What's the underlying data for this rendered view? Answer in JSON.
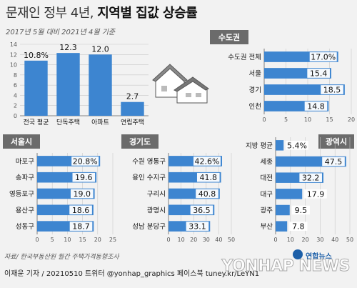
{
  "header": {
    "title_prefix": "문재인 정부 4년,",
    "title_main": "지역별 집값 상승률",
    "subtitle": "2017년 5월 대비 2021년 4월 기준"
  },
  "footer": {
    "source": "자료/ 한국부동산원 월간 주택가격동향조사",
    "credits": "이재윤 기자 / 20210510  트위터 @yonhap_graphics  페이스북 tuney.kr/LeYN1",
    "logo": "연합뉴스",
    "watermark": "YONHAP NEWS"
  },
  "colors": {
    "bar": "#3d85d0",
    "bar_dark": "#2a6cb8",
    "panel_title_bg": "#6b6b6b",
    "grid": "#999999",
    "label_box": "#ffffff"
  },
  "chart_data": [
    {
      "id": "national",
      "type": "bar",
      "categories": [
        "전국 평균",
        "단독주택",
        "아파트",
        "연립주택"
      ],
      "values": [
        10.8,
        12.3,
        12.0,
        2.7
      ],
      "value_labels": [
        "10.8%",
        "12.3",
        "12.0",
        "2.7"
      ],
      "ylim": [
        0,
        14
      ],
      "yticks": [
        "0",
        "2",
        "4",
        "6",
        "8",
        "10",
        "12",
        "14"
      ]
    },
    {
      "id": "capital",
      "type": "bar",
      "title": "수도권",
      "orientation": "horizontal",
      "categories": [
        "수도권 전체",
        "서울",
        "경기",
        "인천"
      ],
      "values": [
        17.0,
        15.4,
        18.5,
        14.8
      ],
      "value_labels": [
        "17.0%",
        "15.4",
        "18.5",
        "14.8"
      ],
      "xlim": [
        0,
        20
      ],
      "xticks": [
        "0",
        "5",
        "10",
        "15",
        "20"
      ]
    },
    {
      "id": "seoul",
      "type": "bar",
      "title": "서울시",
      "orientation": "horizontal",
      "categories": [
        "마포구",
        "송파구",
        "영등포구",
        "용산구",
        "성동구"
      ],
      "values": [
        20.8,
        19.6,
        19.0,
        18.6,
        18.7
      ],
      "value_labels": [
        "20.8%",
        "19.6",
        "19.0",
        "18.6",
        "18.7"
      ],
      "xlim": [
        0,
        25
      ],
      "xticks": [
        "0",
        "5",
        "10",
        "15",
        "20",
        "25"
      ]
    },
    {
      "id": "gyeonggi",
      "type": "bar",
      "title": "경기도",
      "orientation": "horizontal",
      "categories": [
        "수원 영통구",
        "용인 수지구",
        "구리시",
        "광명시",
        "성남 분당구"
      ],
      "values": [
        42.6,
        41.8,
        40.8,
        36.5,
        33.1
      ],
      "value_labels": [
        "42.6%",
        "41.8",
        "40.8",
        "36.5",
        "33.1"
      ],
      "xlim": [
        0,
        50
      ],
      "xticks": [
        "0",
        "10",
        "20",
        "30",
        "40",
        "50"
      ]
    },
    {
      "id": "metro",
      "type": "bar",
      "title": "광역시",
      "orientation": "horizontal",
      "categories": [
        "지방 평균",
        "세종",
        "대전",
        "대구",
        "광주",
        "부산"
      ],
      "values": [
        5.4,
        47.5,
        32.2,
        17.9,
        9.5,
        7.8
      ],
      "value_labels": [
        "5.4%",
        "47.5",
        "32.2",
        "17.9",
        "9.5",
        "7.8"
      ],
      "xlim": [
        0,
        50
      ],
      "xticks": [
        "0",
        "10",
        "20",
        "30",
        "40",
        "50"
      ]
    }
  ]
}
